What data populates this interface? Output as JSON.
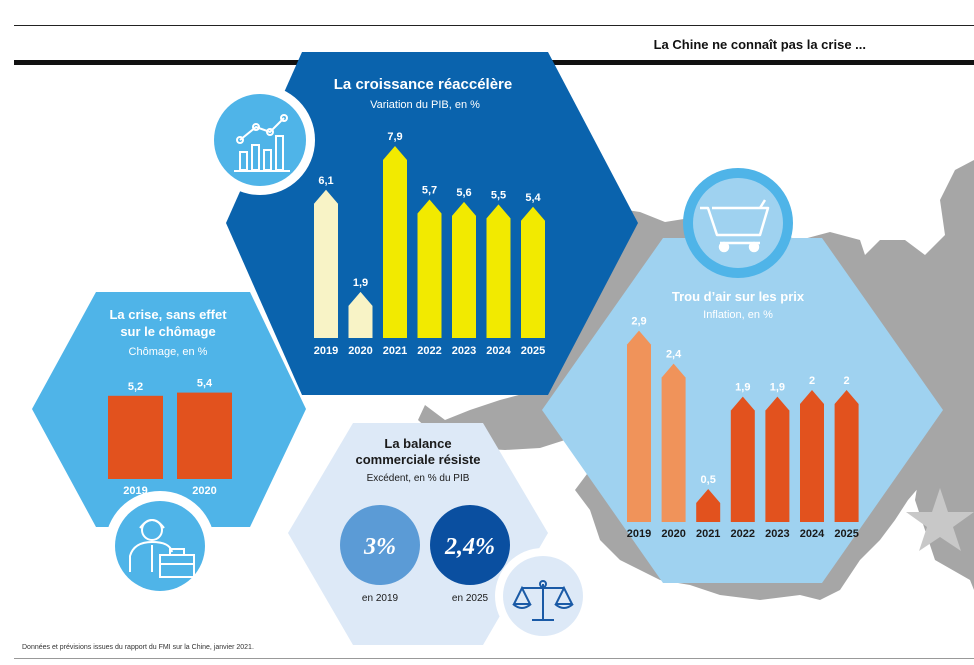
{
  "header": {
    "title": "La Chine ne connaît pas la crise ..."
  },
  "footer": {
    "source": "Données et prévisions issues du rapport du FMI sur la Chine, janvier 2021."
  },
  "colors": {
    "dark_blue": "#0a63ad",
    "mid_blue": "#4fb4e8",
    "light_blue": "#9fd2f0",
    "pale_blue": "#dde9f7",
    "map_gray": "#a6a6a6",
    "yellow": "#f2ea00",
    "pale_yellow": "#f8f3c6",
    "orange": "#e2521e",
    "light_orange": "#f0935a"
  },
  "icons": [
    "chart-line-icon",
    "shopping-cart-icon",
    "worker-briefcase-icon",
    "balance-scale-icon",
    "star-icon"
  ],
  "chart_data": [
    {
      "type": "bar",
      "title": "La croissance réaccélère",
      "subtitle": "Variation du PIB, en %",
      "categories": [
        "2019",
        "2020",
        "2021",
        "2022",
        "2023",
        "2024",
        "2025"
      ],
      "values": [
        6.1,
        1.9,
        7.9,
        5.7,
        5.6,
        5.5,
        5.4
      ],
      "labels": [
        "6,1",
        "1,9",
        "7,9",
        "5,7",
        "5,6",
        "5,5",
        "5,4"
      ]
    },
    {
      "type": "bar",
      "title": "Trou d’air sur les prix",
      "subtitle": "Inflation, en %",
      "categories": [
        "2019",
        "2020",
        "2021",
        "2022",
        "2023",
        "2024",
        "2025"
      ],
      "values": [
        2.9,
        2.4,
        0.5,
        1.9,
        1.9,
        2,
        2
      ],
      "labels": [
        "2,9",
        "2,4",
        "0,5",
        "1,9",
        "1,9",
        "2",
        "2"
      ]
    },
    {
      "type": "bar",
      "title_line1": "La crise, sans effet",
      "title_line2": "sur le chômage",
      "subtitle": "Chômage, en %",
      "categories": [
        "2019",
        "2020"
      ],
      "values": [
        5.2,
        5.4
      ],
      "labels": [
        "5,2",
        "5,4"
      ]
    },
    {
      "type": "table",
      "title_line1": "La balance",
      "title_line2": "commerciale résiste",
      "subtitle": "Excédent, en % du PIB",
      "items": [
        {
          "value": "3%",
          "year": "en 2019"
        },
        {
          "value": "2,4%",
          "year": "en 2025"
        }
      ]
    }
  ]
}
